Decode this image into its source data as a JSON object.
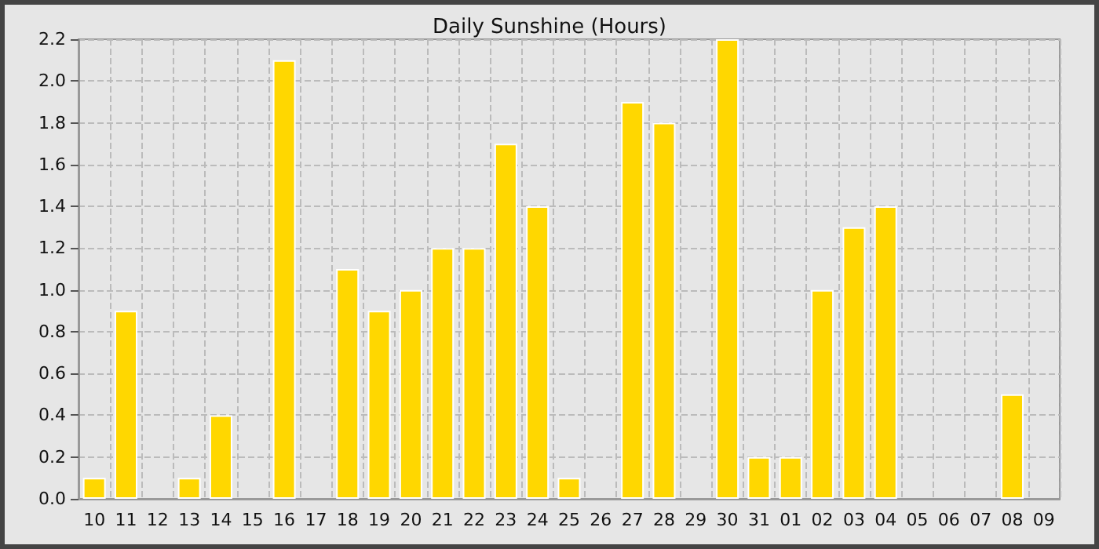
{
  "chart_data": {
    "type": "bar",
    "title": "Daily Sunshine (Hours)",
    "categories": [
      "10",
      "11",
      "12",
      "13",
      "14",
      "15",
      "16",
      "17",
      "18",
      "19",
      "20",
      "21",
      "22",
      "23",
      "24",
      "25",
      "26",
      "27",
      "28",
      "29",
      "30",
      "31",
      "01",
      "02",
      "03",
      "04",
      "05",
      "06",
      "07",
      "08",
      "09"
    ],
    "values": [
      0.1,
      0.9,
      0,
      0.1,
      0.4,
      0,
      2.1,
      0,
      1.1,
      0.9,
      1.0,
      1.2,
      1.2,
      1.7,
      1.4,
      0.1,
      0,
      1.9,
      1.8,
      0,
      2.2,
      0.2,
      0.2,
      1.0,
      1.3,
      1.4,
      0,
      0,
      0,
      0.5,
      0
    ],
    "color": "#ffd700",
    "ylim": [
      0,
      2.2
    ],
    "yticks": [
      {
        "value": 0,
        "label": "0.0"
      },
      {
        "value": 0.2,
        "label": "0.2"
      },
      {
        "value": 0.4,
        "label": "0.4"
      },
      {
        "value": 0.6,
        "label": "0.6"
      },
      {
        "value": 0.8,
        "label": "0.8"
      },
      {
        "value": 1.0,
        "label": "1.0"
      },
      {
        "value": 1.2,
        "label": "1.2"
      },
      {
        "value": 1.4,
        "label": "1.4"
      },
      {
        "value": 1.6,
        "label": "1.6"
      },
      {
        "value": 1.8,
        "label": "1.8"
      },
      {
        "value": 2.0,
        "label": "2.0"
      },
      {
        "value": 2.2,
        "label": "2.2"
      }
    ],
    "grid": true
  }
}
